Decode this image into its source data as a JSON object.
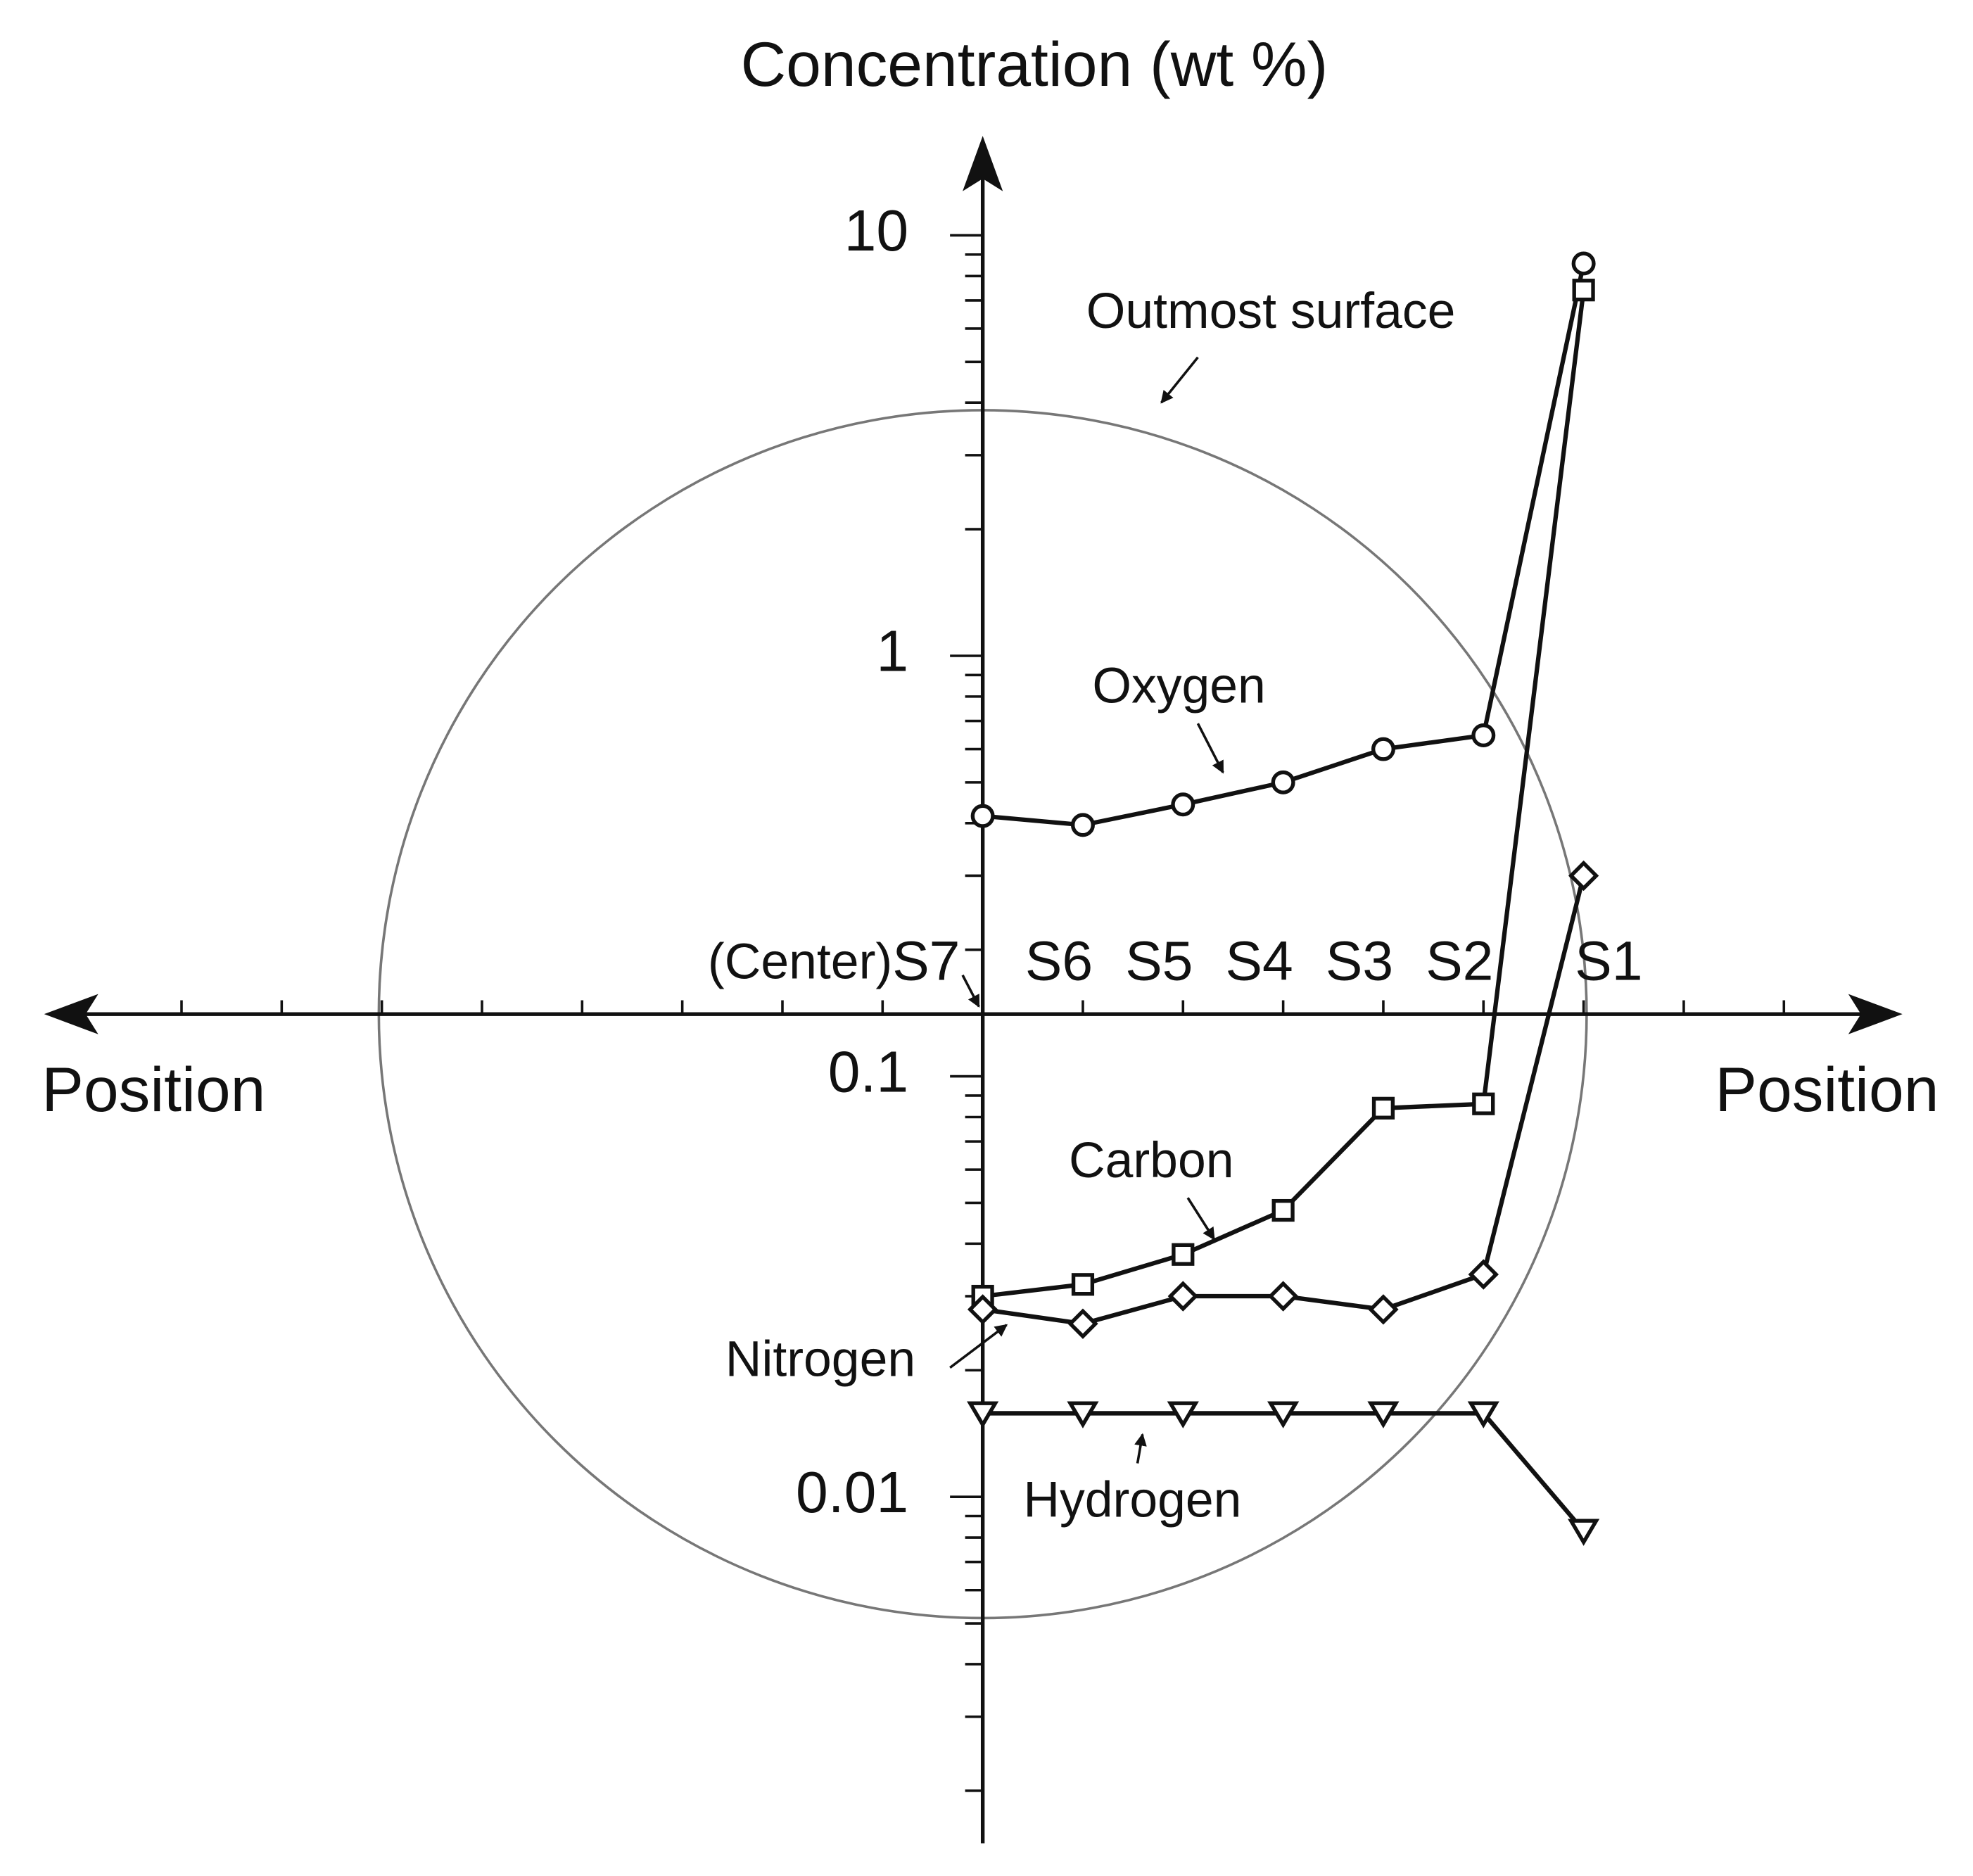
{
  "chart_data": {
    "type": "line",
    "y_label": "Concentration (wt %)",
    "x_label_left": "Position",
    "x_label_right": "Position",
    "categories": [
      "S7",
      "S6",
      "S5",
      "S4",
      "S3",
      "S2",
      "S1"
    ],
    "y_scale": "log",
    "ylim": [
      0.0015,
      17
    ],
    "yticks": [
      0.01,
      0.1,
      1,
      10
    ],
    "series": [
      {
        "name": "Oxygen",
        "color": "#111111",
        "marker": "circle",
        "values": [
          0.416,
          0.396,
          0.443,
          0.5,
          0.6,
          0.647,
          8.57
        ]
      },
      {
        "name": "Carbon",
        "color": "#111111",
        "marker": "square",
        "values": [
          0.03,
          0.032,
          0.0377,
          0.048,
          0.084,
          0.086,
          7.41
        ]
      },
      {
        "name": "Nitrogen",
        "color": "#111111",
        "marker": "diamond",
        "values": [
          0.0279,
          0.0258,
          0.03,
          0.03,
          0.0279,
          0.0338,
          0.3
        ]
      },
      {
        "name": "Hydrogen",
        "color": "#111111",
        "marker": "triangle-down",
        "values": [
          0.0158,
          0.0158,
          0.0158,
          0.0158,
          0.0158,
          0.0158,
          0.0083
        ]
      }
    ],
    "annotations": [
      "Outmost surface",
      "(Center)"
    ]
  }
}
